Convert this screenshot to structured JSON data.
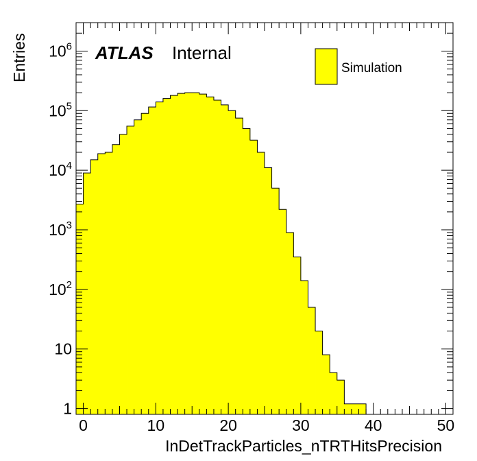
{
  "chart_data": {
    "type": "bar",
    "xlabel": "InDetTrackParticles_nTRTHitsPrecision",
    "ylabel": "Entries",
    "xlim": [
      -1,
      51
    ],
    "ylim": [
      0.8,
      3000000
    ],
    "log_y": true,
    "grid": false,
    "legend_position": "top-right",
    "x_ticks": [
      0,
      10,
      20,
      30,
      40,
      50
    ],
    "x_tick_labels": [
      "0",
      "10",
      "20",
      "30",
      "40",
      "50"
    ],
    "y_ticks": [
      1,
      10,
      100,
      1000,
      10000,
      100000,
      1000000
    ],
    "y_tick_labels": [
      {
        "base": "1",
        "exp": ""
      },
      {
        "base": "10",
        "exp": ""
      },
      {
        "base": "10",
        "exp": "2"
      },
      {
        "base": "10",
        "exp": "3"
      },
      {
        "base": "10",
        "exp": "4"
      },
      {
        "base": "10",
        "exp": "5"
      },
      {
        "base": "10",
        "exp": "6"
      }
    ],
    "bin_edges": [
      -1,
      0,
      1,
      2,
      3,
      4,
      5,
      6,
      7,
      8,
      9,
      10,
      11,
      12,
      13,
      14,
      15,
      16,
      17,
      18,
      19,
      20,
      21,
      22,
      23,
      24,
      25,
      26,
      27,
      28,
      29,
      30,
      31,
      32,
      33,
      34,
      35,
      36,
      37,
      38,
      39,
      40,
      41,
      42,
      43,
      44,
      45,
      46,
      47,
      48,
      49,
      50,
      51
    ],
    "series": [
      {
        "name": "Simulation",
        "color": "#ffff00",
        "values": [
          2700,
          9000,
          15000,
          19000,
          20000,
          27000,
          40000,
          55000,
          70000,
          90000,
          115000,
          140000,
          160000,
          180000,
          195000,
          200000,
          200000,
          190000,
          170000,
          150000,
          125000,
          100000,
          75000,
          50000,
          32000,
          20000,
          11000,
          5000,
          2200,
          900,
          350,
          140,
          50,
          20,
          8,
          4,
          3,
          1.2,
          1.2,
          1.2,
          0,
          0,
          0,
          0,
          0,
          0,
          0,
          0,
          0,
          0,
          0,
          0
        ]
      }
    ],
    "annotations": {
      "atlas": "ATLAS",
      "atlas_status": "Internal"
    }
  }
}
